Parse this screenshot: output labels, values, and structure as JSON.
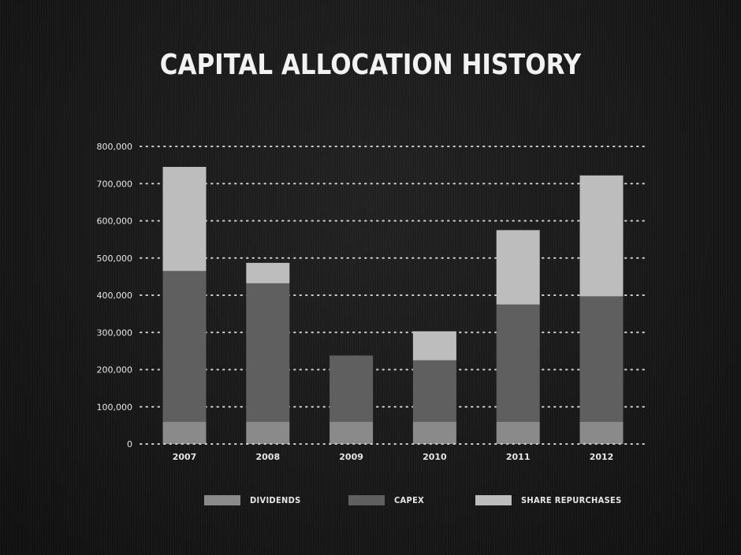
{
  "title": "CAPITAL ALLOCATION HISTORY",
  "colors": {
    "dividends": "#8a8a8a",
    "capex": "#5f5f5f",
    "share_repurchases": "#bdbdbd",
    "grid": "#cfcfcf",
    "text": "#e6e6e6"
  },
  "chart_data": {
    "type": "bar",
    "stacked": true,
    "title": "CAPITAL ALLOCATION HISTORY",
    "categories": [
      "2007",
      "2008",
      "2009",
      "2010",
      "2011",
      "2012"
    ],
    "series": [
      {
        "name": "DIVIDENDS",
        "color_key": "dividends",
        "values": [
          60000,
          60000,
          60000,
          60000,
          60000,
          60000
        ]
      },
      {
        "name": "CAPEX",
        "color_key": "capex",
        "values": [
          405000,
          372000,
          178000,
          165000,
          315000,
          337000
        ]
      },
      {
        "name": "SHARE REPURCHASES",
        "color_key": "share_repurchases",
        "values": [
          280000,
          55000,
          0,
          78000,
          200000,
          325000
        ]
      }
    ],
    "ylim": [
      0,
      800000
    ],
    "yticks": [
      0,
      100000,
      200000,
      300000,
      400000,
      500000,
      600000,
      700000,
      800000
    ],
    "ytick_labels": [
      "0",
      "100,000",
      "200,000",
      "300,000",
      "400,000",
      "500,000",
      "600,000",
      "700,000",
      "800,000"
    ],
    "grid": true,
    "grid_style": "dotted",
    "legend_position": "bottom"
  }
}
